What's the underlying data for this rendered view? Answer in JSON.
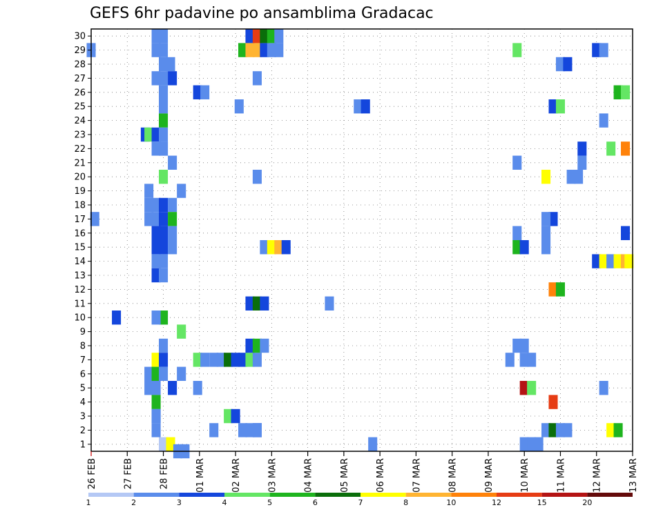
{
  "chart_data": {
    "type": "heatmap",
    "title": "GEFS 6hr padavine po ansamblima Gradacac",
    "xlabel": "",
    "ylabel": "",
    "x_ticks": [
      "26 FEB",
      "27 FEB",
      "28 FEB",
      "01 MAR",
      "02 MAR",
      "03 MAR",
      "04 MAR",
      "05 MAR",
      "06 MAR",
      "07 MAR",
      "08 MAR",
      "09 MAR",
      "10 MAR",
      "11 MAR",
      "12 MAR",
      "13 MAR"
    ],
    "xlim_days": [
      0,
      15
    ],
    "ylim": [
      0.5,
      30.5
    ],
    "y_ticks": [
      1,
      2,
      3,
      4,
      5,
      6,
      7,
      8,
      9,
      10,
      11,
      12,
      13,
      14,
      15,
      16,
      17,
      18,
      19,
      20,
      21,
      22,
      23,
      24,
      25,
      26,
      27,
      28,
      29,
      30
    ],
    "grid": true,
    "colorbar": {
      "labels": [
        "1",
        "2",
        "3",
        "4",
        "5",
        "6",
        "7",
        "8",
        "10",
        "12",
        "15",
        "20"
      ],
      "colors": [
        "#b4c8f5",
        "#5a8ceb",
        "#1446dc",
        "#64e664",
        "#1eb41e",
        "#0a6e0a",
        "#ffff00",
        "#ffb432",
        "#ff820a",
        "#e63c14",
        "#b41414",
        "#640a0a"
      ]
    },
    "cells": [
      [
        2.0,
        1,
        13
      ],
      [
        4.6,
        2,
        2
      ],
      [
        1.8,
        2,
        1
      ],
      [
        1.8,
        3,
        1
      ],
      [
        2.25,
        5,
        2
      ],
      [
        2.0,
        10,
        1
      ],
      [
        2.0,
        24,
        4
      ],
      [
        2.0,
        22,
        1
      ],
      [
        1.5,
        23,
        2
      ],
      [
        2.0,
        29,
        1
      ],
      [
        0,
        29,
        1
      ],
      [
        0.1,
        17,
        1
      ],
      [
        0.7,
        10,
        2
      ],
      [
        1.8,
        30,
        1
      ],
      [
        2.0,
        30,
        1
      ],
      [
        1.8,
        29,
        1
      ],
      [
        2.0,
        28,
        1
      ],
      [
        2.2,
        28,
        1
      ],
      [
        1.8,
        27,
        1
      ],
      [
        2.0,
        27,
        1
      ],
      [
        2.25,
        27,
        2
      ],
      [
        2.0,
        26,
        1
      ],
      [
        2.0,
        25,
        1
      ],
      [
        1.6,
        23,
        3
      ],
      [
        1.8,
        23,
        2
      ],
      [
        2.0,
        23,
        1
      ],
      [
        1.8,
        22,
        1
      ],
      [
        2.0,
        22,
        1
      ],
      [
        2.25,
        21,
        1
      ],
      [
        2.0,
        20,
        3
      ],
      [
        1.6,
        19,
        1
      ],
      [
        2.5,
        19,
        1
      ],
      [
        1.6,
        18,
        1
      ],
      [
        1.8,
        18,
        1
      ],
      [
        2.0,
        18,
        2
      ],
      [
        2.25,
        18,
        1
      ],
      [
        1.6,
        17,
        1
      ],
      [
        1.8,
        17,
        1
      ],
      [
        2.0,
        17,
        2
      ],
      [
        2.25,
        17,
        4
      ],
      [
        1.8,
        16,
        2
      ],
      [
        2.0,
        16,
        2
      ],
      [
        2.25,
        16,
        1
      ],
      [
        1.8,
        15,
        2
      ],
      [
        2.0,
        15,
        2
      ],
      [
        2.25,
        15,
        1
      ],
      [
        1.8,
        14,
        1
      ],
      [
        2.0,
        14,
        1
      ],
      [
        1.8,
        13,
        2
      ],
      [
        2.0,
        13,
        1
      ],
      [
        2.0,
        10,
        4
      ],
      [
        1.8,
        10,
        1
      ],
      [
        2.5,
        9,
        3
      ],
      [
        2.0,
        8,
        1
      ],
      [
        1.8,
        7,
        6
      ],
      [
        2.0,
        7,
        2
      ],
      [
        1.6,
        6,
        1
      ],
      [
        1.8,
        6,
        4
      ],
      [
        2.0,
        6,
        1
      ],
      [
        2.5,
        6,
        1
      ],
      [
        1.6,
        5,
        1
      ],
      [
        1.8,
        5,
        1
      ],
      [
        1.8,
        4,
        4
      ],
      [
        1.8,
        3,
        1
      ],
      [
        2.2,
        1,
        6
      ],
      [
        2.4,
        0.5,
        1
      ],
      [
        2.6,
        0.5,
        1
      ],
      [
        2.95,
        26,
        2
      ],
      [
        3.15,
        26,
        1
      ],
      [
        2.95,
        7,
        3
      ],
      [
        2.95,
        5,
        1
      ],
      [
        3.4,
        2,
        1
      ],
      [
        3.15,
        7,
        1
      ],
      [
        3.4,
        7,
        1
      ],
      [
        3.6,
        7,
        1
      ],
      [
        3.8,
        7,
        5
      ],
      [
        4.0,
        7,
        2
      ],
      [
        4.2,
        7,
        2
      ],
      [
        4.4,
        7,
        3
      ],
      [
        4.6,
        7,
        1
      ],
      [
        3.8,
        3,
        3
      ],
      [
        4.0,
        3,
        2
      ],
      [
        4.2,
        2,
        1
      ],
      [
        4.4,
        2,
        1
      ],
      [
        4.6,
        2,
        1
      ],
      [
        4.2,
        29,
        4
      ],
      [
        4.4,
        29,
        7
      ],
      [
        4.6,
        29,
        7
      ],
      [
        4.8,
        29,
        2
      ],
      [
        5.0,
        29,
        1
      ],
      [
        5.2,
        29,
        1
      ],
      [
        4.4,
        30,
        2
      ],
      [
        4.6,
        30,
        9
      ],
      [
        4.8,
        30,
        5
      ],
      [
        5.0,
        30,
        4
      ],
      [
        5.2,
        30,
        1
      ],
      [
        4.6,
        27,
        1
      ],
      [
        4.1,
        25,
        1
      ],
      [
        4.6,
        20,
        1
      ],
      [
        4.4,
        11,
        2
      ],
      [
        4.6,
        11,
        5
      ],
      [
        4.8,
        11,
        2
      ],
      [
        4.4,
        8,
        2
      ],
      [
        4.6,
        8,
        4
      ],
      [
        4.8,
        8,
        1
      ],
      [
        4.8,
        15,
        1
      ],
      [
        5.0,
        15,
        6
      ],
      [
        5.2,
        15,
        7
      ],
      [
        5.4,
        15,
        2
      ],
      [
        6.6,
        11,
        1
      ],
      [
        7.4,
        25,
        1
      ],
      [
        7.6,
        25,
        2
      ],
      [
        7.8,
        1,
        1
      ],
      [
        11.8,
        15,
        4
      ],
      [
        12.0,
        15,
        2
      ],
      [
        11.8,
        16,
        1
      ],
      [
        11.6,
        7,
        1
      ],
      [
        11.8,
        8,
        1
      ],
      [
        12.0,
        8,
        1
      ],
      [
        12.0,
        7,
        1
      ],
      [
        12.2,
        7,
        1
      ],
      [
        11.8,
        29,
        3
      ],
      [
        11.8,
        21,
        1
      ],
      [
        12.0,
        5,
        10
      ],
      [
        12.2,
        5,
        3
      ],
      [
        12.0,
        1,
        1
      ],
      [
        12.2,
        1,
        1
      ],
      [
        12.4,
        1,
        1
      ],
      [
        12.6,
        2,
        1
      ],
      [
        12.8,
        2,
        5
      ],
      [
        13.0,
        2,
        1
      ],
      [
        13.2,
        2,
        1
      ],
      [
        12.6,
        16,
        1
      ],
      [
        12.6,
        15,
        1
      ],
      [
        12.8,
        17,
        2
      ],
      [
        12.6,
        17,
        1
      ],
      [
        12.6,
        20,
        6
      ],
      [
        12.8,
        25,
        2
      ],
      [
        13.0,
        25,
        3
      ],
      [
        12.8,
        12,
        8
      ],
      [
        13.0,
        12,
        4
      ],
      [
        12.8,
        4,
        9
      ],
      [
        13.0,
        28,
        1
      ],
      [
        13.2,
        28,
        2
      ],
      [
        13.3,
        20,
        1
      ],
      [
        13.5,
        20,
        1
      ],
      [
        13.6,
        21,
        1
      ],
      [
        13.6,
        22,
        2
      ],
      [
        14.0,
        29,
        2
      ],
      [
        14.2,
        29,
        1
      ],
      [
        14.2,
        24,
        1
      ],
      [
        14.2,
        5,
        1
      ],
      [
        14.4,
        22,
        3
      ],
      [
        14.8,
        22,
        8
      ],
      [
        14.6,
        26,
        4
      ],
      [
        14.8,
        26,
        3
      ],
      [
        14.8,
        16,
        2
      ],
      [
        14.0,
        14,
        2
      ],
      [
        14.2,
        14,
        6
      ],
      [
        14.4,
        14,
        1
      ],
      [
        14.6,
        14,
        6
      ],
      [
        14.8,
        14,
        7
      ],
      [
        14.9,
        14,
        6
      ],
      [
        14.4,
        2,
        6
      ],
      [
        14.6,
        2,
        4
      ]
    ]
  }
}
